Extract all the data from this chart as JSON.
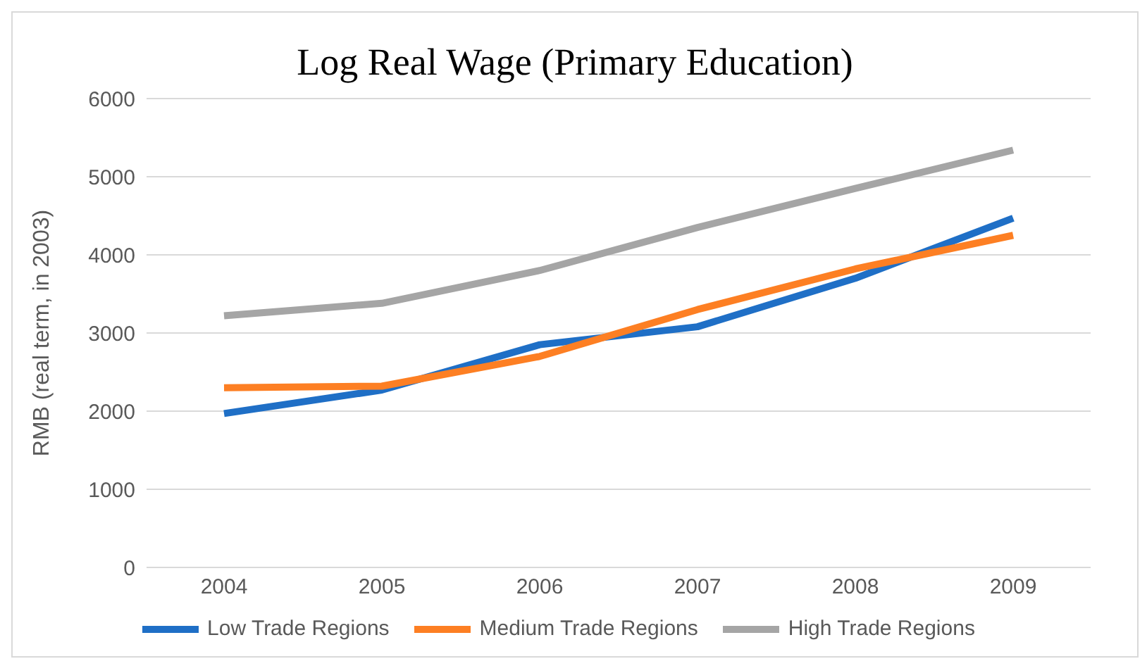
{
  "chart_data": {
    "type": "line",
    "title": "Log Real Wage (Primary Education)",
    "ylabel": "RMB (real term, in 2003)",
    "categories": [
      "2004",
      "2005",
      "2006",
      "2007",
      "2008",
      "2009"
    ],
    "series": [
      {
        "name": "Low Trade Regions",
        "color": "#1f6fc6",
        "values": [
          1970,
          2270,
          2850,
          3080,
          3700,
          4470
        ]
      },
      {
        "name": "Medium Trade Regions",
        "color": "#fd7f23",
        "values": [
          2300,
          2320,
          2700,
          3300,
          3820,
          4250
        ]
      },
      {
        "name": "High Trade Regions",
        "color": "#a5a5a5",
        "values": [
          3220,
          3380,
          3800,
          4350,
          4850,
          5340
        ]
      }
    ],
    "ylim": [
      0,
      6000
    ],
    "yticks": [
      0,
      1000,
      2000,
      3000,
      4000,
      5000,
      6000
    ],
    "grid": "y",
    "legend": "bottom",
    "marker": "none",
    "line_style": "solid"
  }
}
